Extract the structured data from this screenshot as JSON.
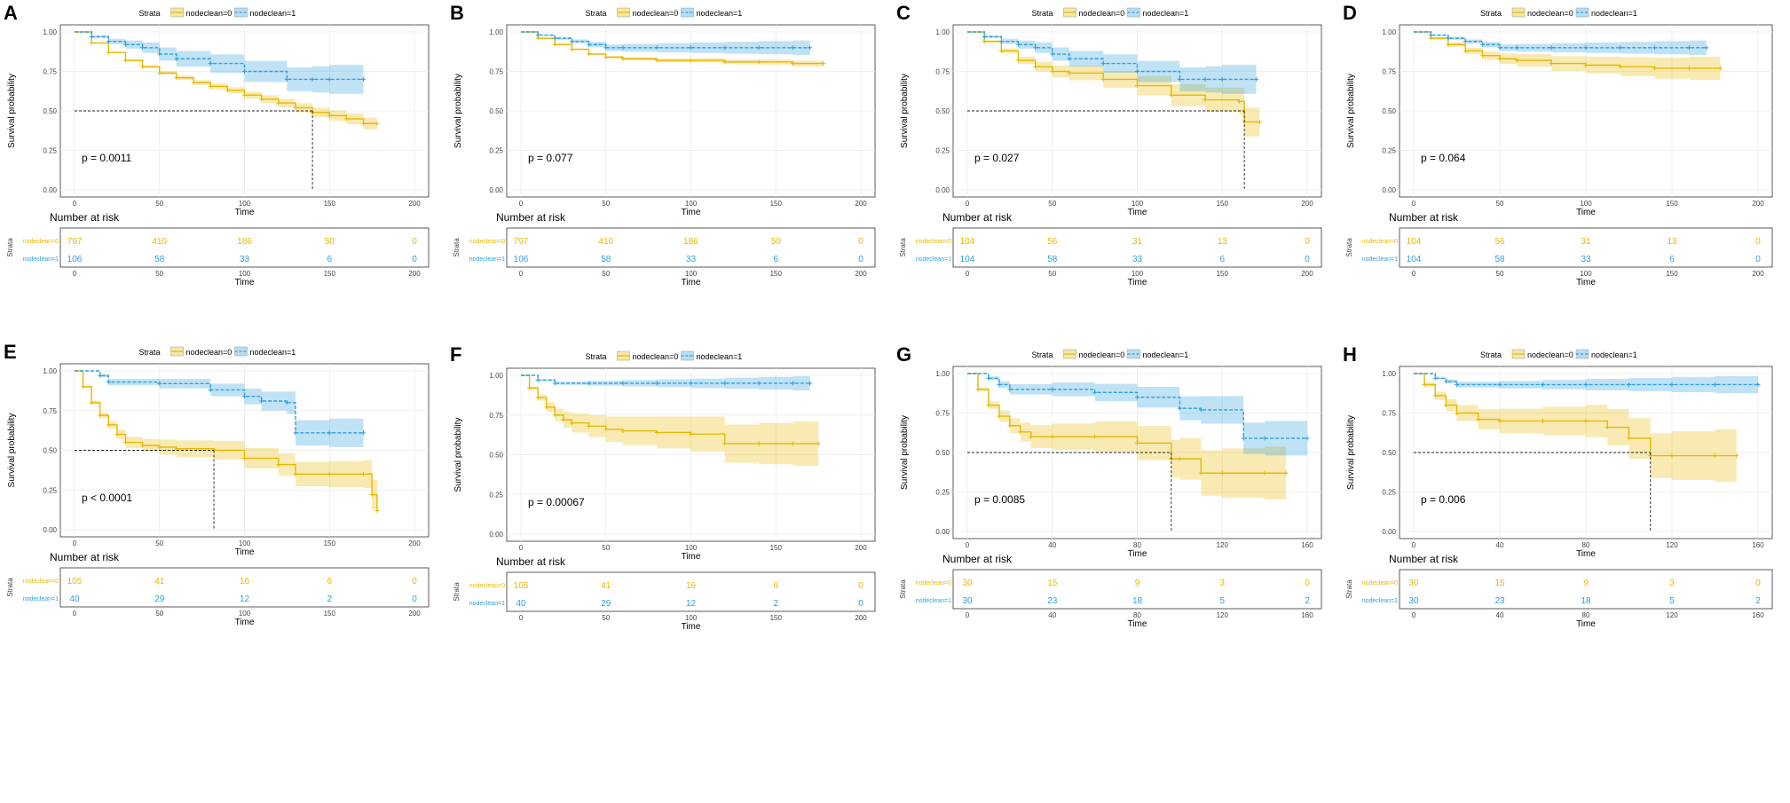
{
  "colors": {
    "group0": "#E7B800",
    "group1": "#2E9FDF",
    "group0_fill": "#E7B800",
    "group1_fill": "#2E9FDF"
  },
  "common": {
    "legend_title": "Strata",
    "legend_labels": [
      "nodeclean=0",
      "nodeclean=1"
    ],
    "ylabel": "Survival probability",
    "xlabel": "Time",
    "risk_title": "Number at risk",
    "risk_ylabel": "Strata",
    "risk_row_labels": [
      "nodeclean=0",
      "nodeclean=1"
    ],
    "y_ticks": [
      0.0,
      0.25,
      0.5,
      0.75,
      1.0
    ],
    "y_tick_labels": [
      "0.00",
      "0.25",
      "0.50",
      "0.75",
      "1.00"
    ]
  },
  "chart_data": [
    {
      "panel": "A",
      "type": "line",
      "title": "",
      "xlim": [
        0,
        200
      ],
      "x_ticks": [
        0,
        50,
        100,
        150,
        200
      ],
      "ylim": [
        0,
        1
      ],
      "p_value": "p = 0.0011",
      "median_lines": [
        {
          "x": 140,
          "y": 0.5
        }
      ],
      "series": [
        {
          "name": "nodeclean=0",
          "ci": 0.04,
          "x": [
            0,
            10,
            20,
            30,
            40,
            50,
            60,
            70,
            80,
            90,
            100,
            110,
            120,
            130,
            140,
            150,
            160,
            170,
            178
          ],
          "y": [
            1.0,
            0.93,
            0.87,
            0.82,
            0.78,
            0.74,
            0.71,
            0.68,
            0.655,
            0.63,
            0.6,
            0.575,
            0.55,
            0.52,
            0.49,
            0.47,
            0.45,
            0.42,
            0.42
          ]
        },
        {
          "name": "nodeclean=1",
          "ci": 0.1,
          "x": [
            0,
            10,
            20,
            30,
            40,
            50,
            60,
            80,
            100,
            125,
            140,
            150,
            170
          ],
          "y": [
            1.0,
            0.97,
            0.94,
            0.92,
            0.9,
            0.86,
            0.83,
            0.8,
            0.75,
            0.7,
            0.7,
            0.7,
            0.7
          ]
        }
      ],
      "risk": {
        "x": [
          0,
          50,
          100,
          150,
          200
        ],
        "rows": [
          [
            "797",
            "410",
            "186",
            "50",
            "0"
          ],
          [
            "106",
            "58",
            "33",
            "6",
            "0"
          ]
        ]
      }
    },
    {
      "panel": "B",
      "type": "line",
      "title": "",
      "xlim": [
        0,
        200
      ],
      "x_ticks": [
        0,
        50,
        100,
        150,
        200
      ],
      "ylim": [
        0,
        1
      ],
      "p_value": "p = 0.077",
      "median_lines": [],
      "series": [
        {
          "name": "nodeclean=0",
          "ci": 0.02,
          "x": [
            0,
            10,
            20,
            30,
            40,
            50,
            60,
            80,
            100,
            120,
            140,
            160,
            178
          ],
          "y": [
            1.0,
            0.96,
            0.92,
            0.89,
            0.86,
            0.84,
            0.83,
            0.82,
            0.82,
            0.81,
            0.81,
            0.8,
            0.8
          ]
        },
        {
          "name": "nodeclean=1",
          "ci": 0.05,
          "x": [
            0,
            10,
            20,
            30,
            40,
            50,
            60,
            80,
            100,
            120,
            140,
            160,
            170
          ],
          "y": [
            1.0,
            0.98,
            0.96,
            0.94,
            0.92,
            0.9,
            0.9,
            0.9,
            0.9,
            0.9,
            0.9,
            0.9,
            0.9
          ]
        }
      ],
      "risk": {
        "x": [
          0,
          50,
          100,
          150,
          200
        ],
        "rows": [
          [
            "797",
            "410",
            "186",
            "50",
            "0"
          ],
          [
            "106",
            "58",
            "33",
            "6",
            "0"
          ]
        ]
      }
    },
    {
      "panel": "C",
      "type": "line",
      "title": "",
      "xlim": [
        0,
        200
      ],
      "x_ticks": [
        0,
        50,
        100,
        150,
        200
      ],
      "ylim": [
        0,
        1
      ],
      "p_value": "p = 0.027",
      "median_lines": [
        {
          "x": 163,
          "y": 0.5
        }
      ],
      "series": [
        {
          "name": "nodeclean=0",
          "ci": 0.1,
          "x": [
            0,
            10,
            20,
            30,
            40,
            50,
            60,
            80,
            100,
            120,
            140,
            160,
            163,
            172
          ],
          "y": [
            1.0,
            0.94,
            0.88,
            0.82,
            0.78,
            0.75,
            0.74,
            0.7,
            0.66,
            0.6,
            0.57,
            0.56,
            0.43,
            0.43
          ]
        },
        {
          "name": "nodeclean=1",
          "ci": 0.1,
          "x": [
            0,
            10,
            20,
            30,
            40,
            50,
            60,
            80,
            100,
            125,
            140,
            150,
            170
          ],
          "y": [
            1.0,
            0.97,
            0.94,
            0.92,
            0.9,
            0.86,
            0.83,
            0.8,
            0.75,
            0.7,
            0.7,
            0.7,
            0.7
          ]
        }
      ],
      "risk": {
        "x": [
          0,
          50,
          100,
          150,
          200
        ],
        "rows": [
          [
            "104",
            "56",
            "31",
            "13",
            "0"
          ],
          [
            "104",
            "58",
            "33",
            "6",
            "0"
          ]
        ]
      }
    },
    {
      "panel": "D",
      "type": "line",
      "title": "",
      "xlim": [
        0,
        200
      ],
      "x_ticks": [
        0,
        50,
        100,
        150,
        200
      ],
      "ylim": [
        0,
        1
      ],
      "p_value": "p = 0.064",
      "median_lines": [],
      "series": [
        {
          "name": "nodeclean=0",
          "ci": 0.08,
          "x": [
            0,
            10,
            20,
            30,
            40,
            50,
            60,
            80,
            100,
            120,
            140,
            160,
            178
          ],
          "y": [
            1.0,
            0.96,
            0.92,
            0.88,
            0.85,
            0.83,
            0.82,
            0.8,
            0.79,
            0.78,
            0.77,
            0.77,
            0.77
          ]
        },
        {
          "name": "nodeclean=1",
          "ci": 0.05,
          "x": [
            0,
            10,
            20,
            30,
            40,
            50,
            60,
            80,
            100,
            120,
            140,
            160,
            170
          ],
          "y": [
            1.0,
            0.98,
            0.96,
            0.94,
            0.92,
            0.9,
            0.9,
            0.9,
            0.9,
            0.9,
            0.9,
            0.9,
            0.9
          ]
        }
      ],
      "risk": {
        "x": [
          0,
          50,
          100,
          150,
          200
        ],
        "rows": [
          [
            "104",
            "56",
            "31",
            "13",
            "0"
          ],
          [
            "104",
            "58",
            "33",
            "6",
            "0"
          ]
        ]
      }
    },
    {
      "panel": "E",
      "type": "line",
      "title": "",
      "xlim": [
        0,
        200
      ],
      "x_ticks": [
        0,
        50,
        100,
        150,
        200
      ],
      "ylim": [
        0,
        1
      ],
      "p_value": "p < 0.0001",
      "median_lines": [
        {
          "x": 82,
          "y": 0.5
        }
      ],
      "series": [
        {
          "name": "nodeclean=0",
          "ci": 0.1,
          "x": [
            0,
            5,
            10,
            15,
            20,
            25,
            30,
            40,
            50,
            60,
            82,
            100,
            120,
            130,
            150,
            170,
            175,
            178
          ],
          "y": [
            1.0,
            0.9,
            0.8,
            0.72,
            0.66,
            0.6,
            0.55,
            0.53,
            0.52,
            0.51,
            0.5,
            0.45,
            0.41,
            0.35,
            0.35,
            0.35,
            0.22,
            0.12
          ]
        },
        {
          "name": "nodeclean=1",
          "ci": 0.1,
          "x": [
            0,
            15,
            20,
            50,
            80,
            100,
            110,
            125,
            130,
            150,
            170
          ],
          "y": [
            1.0,
            0.97,
            0.93,
            0.92,
            0.88,
            0.84,
            0.81,
            0.8,
            0.61,
            0.61,
            0.61
          ]
        }
      ],
      "risk": {
        "x": [
          0,
          50,
          100,
          150,
          200
        ],
        "rows": [
          [
            "105",
            "41",
            "16",
            "6",
            "0"
          ],
          [
            "40",
            "29",
            "12",
            "2",
            "0"
          ]
        ]
      }
    },
    {
      "panel": "F",
      "type": "line",
      "title": "",
      "xlim": [
        0,
        200
      ],
      "x_ticks": [
        0,
        50,
        100,
        150,
        200
      ],
      "ylim": [
        0,
        1
      ],
      "p_value": "p = 0.00067",
      "median_lines": [],
      "series": [
        {
          "name": "nodeclean=0",
          "ci": 0.15,
          "x": [
            0,
            5,
            10,
            15,
            20,
            25,
            30,
            40,
            50,
            60,
            80,
            100,
            120,
            140,
            160,
            175
          ],
          "y": [
            1.0,
            0.92,
            0.86,
            0.8,
            0.75,
            0.72,
            0.7,
            0.68,
            0.66,
            0.65,
            0.64,
            0.63,
            0.57,
            0.57,
            0.57,
            0.57
          ]
        },
        {
          "name": "nodeclean=1",
          "ci": 0.05,
          "x": [
            0,
            10,
            20,
            40,
            60,
            80,
            100,
            120,
            140,
            160,
            170
          ],
          "y": [
            1.0,
            0.97,
            0.95,
            0.95,
            0.95,
            0.95,
            0.95,
            0.95,
            0.95,
            0.95,
            0.95
          ]
        }
      ],
      "risk": {
        "x": [
          0,
          50,
          100,
          150,
          200
        ],
        "rows": [
          [
            "105",
            "41",
            "16",
            "6",
            "0"
          ],
          [
            "40",
            "29",
            "12",
            "2",
            "0"
          ]
        ]
      }
    },
    {
      "panel": "G",
      "type": "line",
      "title": "",
      "xlim": [
        0,
        160
      ],
      "x_ticks": [
        0,
        40,
        80,
        120,
        160
      ],
      "ylim": [
        0,
        1
      ],
      "p_value": "p = 0.0085",
      "median_lines": [
        {
          "x": 96,
          "y": 0.5
        }
      ],
      "series": [
        {
          "name": "nodeclean=0",
          "ci": 0.18,
          "x": [
            0,
            5,
            10,
            15,
            20,
            25,
            30,
            40,
            60,
            80,
            96,
            100,
            110,
            120,
            140,
            150
          ],
          "y": [
            1.0,
            0.9,
            0.8,
            0.73,
            0.67,
            0.63,
            0.6,
            0.6,
            0.6,
            0.56,
            0.46,
            0.46,
            0.37,
            0.37,
            0.37,
            0.37
          ]
        },
        {
          "name": "nodeclean=1",
          "ci": 0.12,
          "x": [
            0,
            10,
            15,
            20,
            40,
            60,
            80,
            100,
            110,
            130,
            140,
            160
          ],
          "y": [
            1.0,
            0.97,
            0.93,
            0.9,
            0.9,
            0.88,
            0.85,
            0.78,
            0.77,
            0.59,
            0.59,
            0.59
          ]
        }
      ],
      "risk": {
        "x": [
          0,
          40,
          80,
          120,
          160
        ],
        "rows": [
          [
            "30",
            "15",
            "9",
            "3",
            "0"
          ],
          [
            "30",
            "23",
            "18",
            "5",
            "2"
          ]
        ]
      }
    },
    {
      "panel": "H",
      "type": "line",
      "title": "",
      "xlim": [
        0,
        160
      ],
      "x_ticks": [
        0,
        40,
        80,
        120,
        160
      ],
      "ylim": [
        0,
        1
      ],
      "p_value": "p = 0.006",
      "median_lines": [
        {
          "x": 110,
          "y": 0.5
        }
      ],
      "series": [
        {
          "name": "nodeclean=0",
          "ci": 0.18,
          "x": [
            0,
            5,
            10,
            15,
            20,
            30,
            40,
            60,
            80,
            90,
            100,
            110,
            120,
            140,
            150
          ],
          "y": [
            1.0,
            0.93,
            0.86,
            0.8,
            0.75,
            0.71,
            0.7,
            0.7,
            0.7,
            0.66,
            0.59,
            0.48,
            0.48,
            0.48,
            0.48
          ]
        },
        {
          "name": "nodeclean=1",
          "ci": 0.06,
          "x": [
            0,
            10,
            15,
            20,
            40,
            60,
            80,
            100,
            120,
            140,
            160
          ],
          "y": [
            1.0,
            0.97,
            0.95,
            0.93,
            0.93,
            0.93,
            0.93,
            0.93,
            0.93,
            0.93,
            0.93
          ]
        }
      ],
      "risk": {
        "x": [
          0,
          40,
          80,
          120,
          160
        ],
        "rows": [
          [
            "30",
            "15",
            "9",
            "3",
            "0"
          ],
          [
            "30",
            "23",
            "18",
            "5",
            "2"
          ]
        ]
      }
    }
  ]
}
